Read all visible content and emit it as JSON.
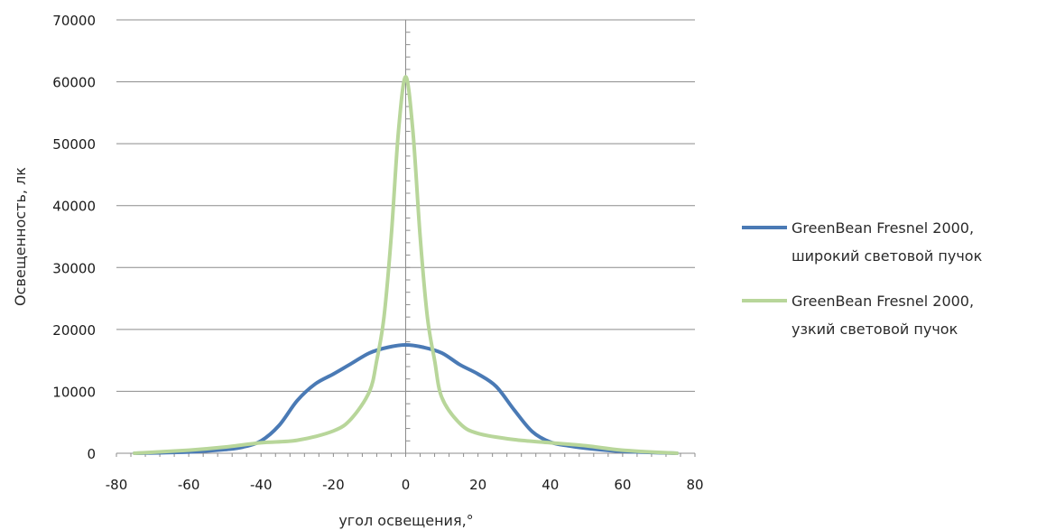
{
  "chart_data": {
    "type": "line",
    "title": "",
    "xlabel": "угол освещения,°",
    "ylabel": "Освещенность, лк",
    "xlim": [
      -80,
      80
    ],
    "ylim": [
      0,
      70000
    ],
    "xticks": [
      "-80",
      "-60",
      "-40",
      "-20",
      "0",
      "20",
      "40",
      "60",
      "80"
    ],
    "yticks": [
      "0",
      "10000",
      "20000",
      "30000",
      "40000",
      "50000",
      "60000",
      "70000"
    ],
    "grid": "horizontal",
    "legend_position": "right",
    "series": [
      {
        "name": "GreenBean Fresnel 2000, широкий световой пучок",
        "color": "#4a7ab5",
        "x": [
          -75,
          -60,
          -50,
          -45,
          -40,
          -35,
          -30,
          -25,
          -20,
          -15,
          -10,
          -5,
          0,
          5,
          10,
          15,
          20,
          25,
          30,
          35,
          40,
          45,
          50,
          60,
          75
        ],
        "y": [
          0,
          200,
          600,
          1000,
          2000,
          4500,
          8500,
          11200,
          12800,
          14500,
          16200,
          17100,
          17500,
          17100,
          16200,
          14300,
          12800,
          10800,
          7000,
          3500,
          1800,
          1200,
          800,
          300,
          0
        ]
      },
      {
        "name": "GreenBean Fresnel 2000, узкий световой пучок",
        "color": "#b8d69a",
        "x": [
          -75,
          -60,
          -50,
          -40,
          -30,
          -20,
          -15,
          -10,
          -8,
          -6,
          -4,
          -2,
          0,
          2,
          4,
          6,
          8,
          10,
          15,
          20,
          30,
          40,
          50,
          60,
          75
        ],
        "y": [
          0,
          500,
          1000,
          1700,
          2100,
          3600,
          5600,
          10000,
          15000,
          22000,
          35000,
          52000,
          60800,
          52000,
          35000,
          22000,
          15000,
          9000,
          4800,
          3200,
          2200,
          1700,
          1200,
          500,
          0
        ]
      }
    ],
    "legend": [
      {
        "line1": "GreenBean Fresnel 2000,",
        "line2": "широкий световой пучок"
      },
      {
        "line1": "GreenBean Fresnel 2000,",
        "line2": "узкий световой пучок"
      }
    ]
  }
}
